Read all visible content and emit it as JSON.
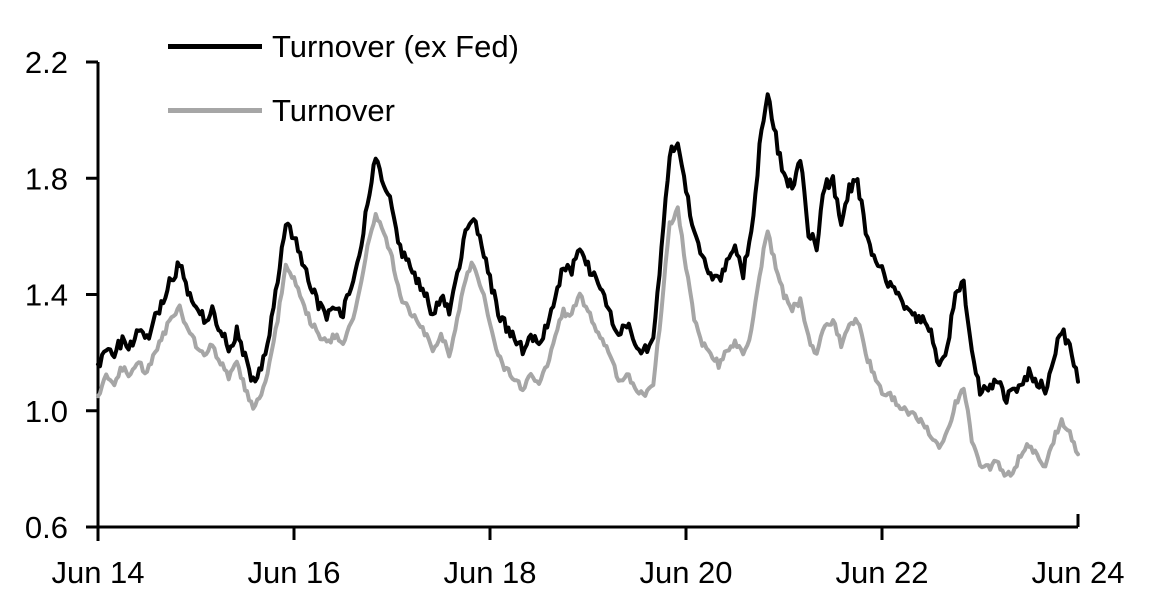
{
  "chart_data": {
    "type": "line",
    "title": "",
    "background_color": "#ffffff",
    "axis_color": "#000000",
    "grid": false,
    "legend_position": "top-left",
    "legend": [
      {
        "label": "Turnover (ex Fed)",
        "color": "#000000"
      },
      {
        "label": "Turnover",
        "color": "#a6a6a6"
      }
    ],
    "x_axis": {
      "start": "Jun 2014",
      "end": "Jun 2024",
      "tick_labels": [
        "Jun 14",
        "Jun 16",
        "Jun 18",
        "Jun 20",
        "Jun 22",
        "Jun 24"
      ],
      "points_per_tick_interval": 24
    },
    "y_axis": {
      "min": 0.6,
      "max": 2.2,
      "tick_labels": [
        "0.6",
        "1.0",
        "1.4",
        "1.8",
        "2.2"
      ]
    },
    "x_monthly_from": "2014-06",
    "x_monthly_to": "2024-06",
    "series": [
      {
        "name": "Turnover (ex Fed)",
        "color": "#000000",
        "stroke_width": 4,
        "values": [
          1.16,
          1.21,
          1.19,
          1.25,
          1.22,
          1.27,
          1.24,
          1.32,
          1.38,
          1.46,
          1.5,
          1.42,
          1.36,
          1.32,
          1.34,
          1.28,
          1.22,
          1.27,
          1.18,
          1.1,
          1.15,
          1.28,
          1.45,
          1.65,
          1.6,
          1.5,
          1.44,
          1.37,
          1.33,
          1.36,
          1.34,
          1.42,
          1.52,
          1.72,
          1.87,
          1.79,
          1.7,
          1.55,
          1.5,
          1.46,
          1.4,
          1.33,
          1.4,
          1.33,
          1.46,
          1.62,
          1.67,
          1.58,
          1.45,
          1.34,
          1.29,
          1.25,
          1.21,
          1.26,
          1.23,
          1.3,
          1.4,
          1.5,
          1.48,
          1.55,
          1.5,
          1.44,
          1.38,
          1.31,
          1.27,
          1.28,
          1.22,
          1.21,
          1.25,
          1.55,
          1.88,
          1.94,
          1.77,
          1.6,
          1.52,
          1.47,
          1.44,
          1.51,
          1.55,
          1.47,
          1.62,
          1.9,
          2.1,
          1.94,
          1.8,
          1.77,
          1.86,
          1.62,
          1.56,
          1.78,
          1.79,
          1.66,
          1.76,
          1.79,
          1.62,
          1.53,
          1.49,
          1.43,
          1.4,
          1.36,
          1.32,
          1.31,
          1.26,
          1.14,
          1.22,
          1.4,
          1.44,
          1.2,
          1.06,
          1.07,
          1.12,
          1.04,
          1.06,
          1.09,
          1.13,
          1.1,
          1.07,
          1.18,
          1.28,
          1.22,
          1.1
        ]
      },
      {
        "name": "Turnover",
        "color": "#a6a6a6",
        "stroke_width": 4,
        "values": [
          1.05,
          1.12,
          1.1,
          1.15,
          1.12,
          1.16,
          1.13,
          1.2,
          1.26,
          1.33,
          1.35,
          1.28,
          1.23,
          1.2,
          1.22,
          1.17,
          1.12,
          1.16,
          1.08,
          1.01,
          1.05,
          1.16,
          1.32,
          1.49,
          1.45,
          1.37,
          1.31,
          1.26,
          1.23,
          1.26,
          1.23,
          1.3,
          1.4,
          1.58,
          1.68,
          1.61,
          1.52,
          1.39,
          1.35,
          1.31,
          1.27,
          1.2,
          1.27,
          1.19,
          1.31,
          1.46,
          1.51,
          1.42,
          1.3,
          1.19,
          1.14,
          1.11,
          1.07,
          1.12,
          1.09,
          1.16,
          1.26,
          1.34,
          1.33,
          1.4,
          1.35,
          1.28,
          1.23,
          1.16,
          1.1,
          1.12,
          1.07,
          1.05,
          1.09,
          1.35,
          1.64,
          1.69,
          1.5,
          1.32,
          1.23,
          1.2,
          1.16,
          1.21,
          1.24,
          1.19,
          1.27,
          1.47,
          1.62,
          1.49,
          1.4,
          1.35,
          1.38,
          1.25,
          1.2,
          1.3,
          1.31,
          1.23,
          1.29,
          1.31,
          1.2,
          1.12,
          1.06,
          1.05,
          1.02,
          1.0,
          0.98,
          0.96,
          0.92,
          0.87,
          0.92,
          1.02,
          1.08,
          0.9,
          0.82,
          0.8,
          0.83,
          0.78,
          0.79,
          0.85,
          0.88,
          0.85,
          0.8,
          0.9,
          0.97,
          0.92,
          0.85
        ]
      }
    ]
  }
}
